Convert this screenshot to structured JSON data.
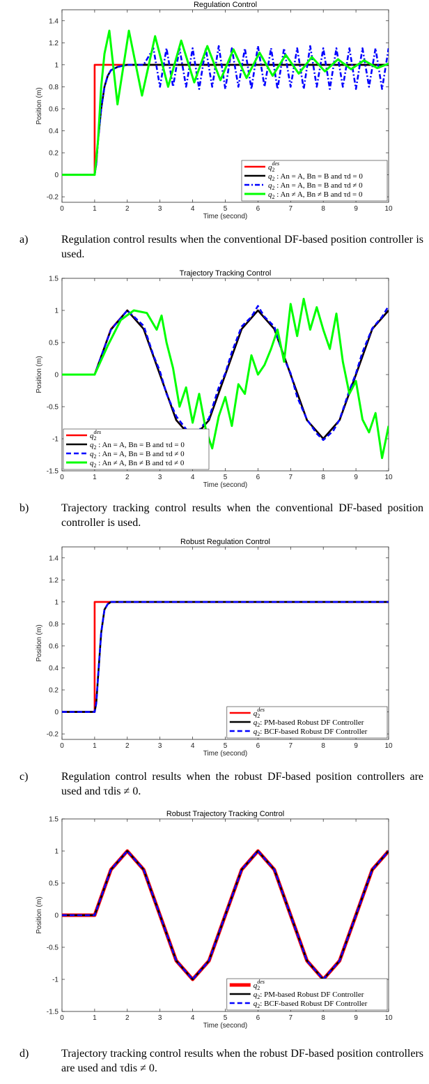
{
  "panels": [
    {
      "id": "a",
      "caption_letter": "a)",
      "caption": "Regulation control results when the conventional DF-based position controller is used.",
      "chart_data": {
        "type": "line",
        "title": "Regulation Control",
        "xlabel": "Time (second)",
        "ylabel": "Position (m)",
        "xlim": [
          0,
          10
        ],
        "ylim": [
          -0.25,
          1.5
        ],
        "xticks": [
          0,
          1,
          2,
          3,
          4,
          5,
          6,
          7,
          8,
          9,
          10
        ],
        "yticks": [
          -0.2,
          0,
          0.2,
          0.4,
          0.6,
          0.8,
          1,
          1.2,
          1.4
        ],
        "legend_placement": "bottom-right",
        "series": [
          {
            "name": "q2^des",
            "color": "#ff0000",
            "style": "solid",
            "x": [
              0,
              1,
              1,
              10
            ],
            "y": [
              0,
              0,
              1,
              1
            ]
          },
          {
            "name": "q2 : An = A, Bn = B and τd = 0",
            "color": "#000000",
            "style": "solid",
            "x": [
              0,
              1,
              1.05,
              1.1,
              1.2,
              1.3,
              1.4,
              1.5,
              1.7,
              2,
              2.5,
              3,
              10
            ],
            "y": [
              0,
              0,
              0.1,
              0.3,
              0.6,
              0.8,
              0.9,
              0.95,
              0.98,
              1,
              1,
              1,
              1
            ]
          },
          {
            "name": "q2 : An = A, Bn = B and τd ≠ 0",
            "color": "#0000ff",
            "style": "dashdot",
            "x": [
              0,
              1,
              1.05,
              1.1,
              1.2,
              1.3,
              1.4,
              1.5,
              1.7,
              2,
              2.5,
              2.8,
              3,
              3.2,
              3.4,
              3.6,
              3.8,
              4,
              4.2,
              4.4,
              4.6,
              4.8,
              5,
              5.2,
              5.4,
              5.6,
              5.8,
              6,
              6.2,
              6.4,
              6.6,
              6.8,
              7,
              7.2,
              7.4,
              7.6,
              7.8,
              8,
              8.2,
              8.4,
              8.6,
              8.8,
              9,
              9.2,
              9.4,
              9.6,
              9.8,
              10
            ],
            "y": [
              0,
              0,
              0.1,
              0.3,
              0.6,
              0.8,
              0.9,
              0.95,
              0.98,
              1,
              1,
              1.15,
              0.8,
              1.15,
              0.8,
              1.15,
              0.8,
              1.15,
              0.78,
              1.15,
              0.8,
              1.17,
              0.78,
              1.15,
              0.8,
              1.15,
              0.78,
              1.17,
              0.8,
              1.15,
              0.78,
              1.15,
              0.8,
              1.15,
              0.78,
              1.17,
              0.8,
              1.15,
              0.78,
              1.15,
              0.8,
              1.15,
              0.78,
              1.15,
              0.8,
              1.15,
              0.78,
              1.15
            ]
          },
          {
            "name": "q2 : An ≠ A, Bn ≠ B and τd = 0",
            "color": "#00ff00",
            "style": "solid",
            "x": [
              0,
              1,
              1.1,
              1.2,
              1.3,
              1.45,
              1.7,
              2.05,
              2.45,
              2.85,
              3.25,
              3.65,
              4.05,
              4.45,
              4.85,
              5.25,
              5.65,
              6.05,
              6.45,
              6.85,
              7.25,
              7.65,
              8.05,
              8.45,
              8.85,
              9.25,
              9.65,
              10
            ],
            "y": [
              0,
              0,
              0.3,
              0.8,
              1.1,
              1.31,
              0.64,
              1.31,
              0.72,
              1.26,
              0.8,
              1.22,
              0.84,
              1.17,
              0.86,
              1.14,
              0.88,
              1.11,
              0.9,
              1.09,
              0.92,
              1.07,
              0.94,
              1.05,
              0.96,
              1.04,
              0.97,
              1.01
            ]
          }
        ]
      }
    },
    {
      "id": "b",
      "caption_letter": "b)",
      "caption": "Trajectory tracking control results when the conventional DF-based position controller is used.",
      "chart_data": {
        "type": "line",
        "title": "Trajectory Tracking Control",
        "xlabel": "Time (second)",
        "ylabel": "Position (m)",
        "xlim": [
          0,
          10
        ],
        "ylim": [
          -1.5,
          1.5
        ],
        "xticks": [
          0,
          1,
          2,
          3,
          4,
          5,
          6,
          7,
          8,
          9,
          10
        ],
        "yticks": [
          -1.5,
          -1,
          -0.5,
          0,
          0.5,
          1,
          1.5
        ],
        "legend_placement": "bottom-left",
        "series": [
          {
            "name": "q2^des",
            "color": "#ff0000",
            "style": "solid",
            "x": [
              0,
              1,
              1.5,
              2,
              2.5,
              3,
              3.5,
              4,
              4.5,
              5,
              5.5,
              6,
              6.5,
              7,
              7.5,
              8,
              8.5,
              9,
              9.5,
              10
            ],
            "y": [
              0,
              0,
              0.71,
              1,
              0.71,
              0,
              -0.71,
              -1,
              -0.71,
              0,
              0.71,
              1,
              0.71,
              0,
              -0.71,
              -1,
              -0.71,
              0,
              0.71,
              1
            ]
          },
          {
            "name": "q2 : An = A, Bn = B and τd = 0",
            "color": "#000000",
            "style": "solid",
            "x": [
              0,
              1,
              1.5,
              2,
              2.5,
              3,
              3.5,
              4,
              4.5,
              5,
              5.5,
              6,
              6.5,
              7,
              7.5,
              8,
              8.5,
              9,
              9.5,
              10
            ],
            "y": [
              0,
              0,
              0.7,
              1,
              0.71,
              0,
              -0.71,
              -1,
              -0.71,
              0,
              0.71,
              1,
              0.71,
              0,
              -0.71,
              -1,
              -0.71,
              0,
              0.71,
              1
            ]
          },
          {
            "name": "q2 : An = A, Bn = B and τd ≠ 0",
            "color": "#0000ff",
            "style": "dash",
            "x": [
              0,
              1,
              1.5,
              2,
              2.5,
              2.8,
              3,
              3.2,
              3.5,
              3.8,
              4,
              4.3,
              4.5,
              4.8,
              5,
              5.2,
              5.5,
              5.8,
              6,
              6.2,
              6.5,
              6.8,
              7,
              7.2,
              7.5,
              7.8,
              8,
              8.3,
              8.5,
              8.8,
              9,
              9.2,
              9.5,
              9.8,
              10
            ],
            "y": [
              0,
              0,
              0.7,
              1,
              0.76,
              0.3,
              0.05,
              -0.3,
              -0.65,
              -0.85,
              -1,
              -0.8,
              -0.68,
              -0.2,
              0.02,
              0.35,
              0.75,
              0.9,
              1.07,
              0.9,
              0.75,
              0.25,
              0.02,
              -0.35,
              -0.7,
              -0.92,
              -1.02,
              -0.88,
              -0.7,
              -0.25,
              0.02,
              0.35,
              0.72,
              0.9,
              1.07
            ]
          },
          {
            "name": "q2 : An ≠ A, Bn ≠ B and τd ≠ 0",
            "color": "#00ff00",
            "style": "solid",
            "x": [
              0,
              1,
              1.4,
              1.8,
              2.2,
              2.6,
              2.9,
              3.05,
              3.2,
              3.4,
              3.6,
              3.8,
              4,
              4.2,
              4.4,
              4.6,
              4.8,
              5,
              5.2,
              5.4,
              5.6,
              5.8,
              6,
              6.2,
              6.4,
              6.6,
              6.8,
              7,
              7.2,
              7.4,
              7.6,
              7.8,
              8,
              8.2,
              8.4,
              8.6,
              8.8,
              9,
              9.2,
              9.4,
              9.6,
              9.8,
              10
            ],
            "y": [
              0,
              0,
              0.45,
              0.85,
              1,
              0.96,
              0.7,
              0.92,
              0.5,
              0.1,
              -0.5,
              -0.2,
              -0.75,
              -0.3,
              -0.85,
              -1.15,
              -0.65,
              -0.35,
              -0.8,
              -0.15,
              -0.3,
              0.3,
              0,
              0.15,
              0.4,
              0.7,
              0.2,
              1.1,
              0.6,
              1.18,
              0.7,
              1.05,
              0.7,
              0.4,
              0.95,
              0.2,
              -0.3,
              -0.1,
              -0.7,
              -0.9,
              -0.6,
              -1.3,
              -0.8
            ]
          }
        ]
      }
    },
    {
      "id": "c",
      "caption_letter": "c)",
      "caption": "Regulation control results when the robust DF-based position controllers are used and τdis ≠ 0.",
      "chart_data": {
        "type": "line",
        "title": "Robust Regulation Control",
        "xlabel": "Time (second)",
        "ylabel": "Position (m)",
        "xlim": [
          0,
          10
        ],
        "ylim": [
          -0.25,
          1.5
        ],
        "xticks": [
          0,
          1,
          2,
          3,
          4,
          5,
          6,
          7,
          8,
          9,
          10
        ],
        "yticks": [
          -0.2,
          0,
          0.2,
          0.4,
          0.6,
          0.8,
          1,
          1.2,
          1.4
        ],
        "legend_placement": "bottom-right",
        "series": [
          {
            "name": "q2^des",
            "color": "#ff0000",
            "style": "solid",
            "x": [
              0,
              1,
              1,
              10
            ],
            "y": [
              0,
              0,
              1,
              1
            ]
          },
          {
            "name": "q2: PM-based Robust DF Controller",
            "color": "#000000",
            "style": "solid",
            "x": [
              0,
              1,
              1.05,
              1.1,
              1.2,
              1.3,
              1.4,
              1.5,
              1.7,
              2,
              10
            ],
            "y": [
              0,
              0,
              0.08,
              0.3,
              0.72,
              0.93,
              0.98,
              1,
              1,
              1,
              1
            ]
          },
          {
            "name": "q2: BCF-based Robust DF Controller",
            "color": "#0000ff",
            "style": "dash",
            "x": [
              0,
              1,
              1.05,
              1.1,
              1.2,
              1.3,
              1.4,
              1.5,
              1.7,
              2,
              10
            ],
            "y": [
              0,
              0,
              0.08,
              0.3,
              0.72,
              0.93,
              0.98,
              1,
              1,
              1,
              1
            ]
          }
        ]
      }
    },
    {
      "id": "d",
      "caption_letter": "d)",
      "caption": "Trajectory tracking control results when the robust DF-based position controllers are used and τdis ≠ 0.",
      "chart_data": {
        "type": "line",
        "title": "Robust Trajectory Tracking Control",
        "xlabel": "Time (second)",
        "ylabel": "Position (m)",
        "xlim": [
          0,
          10
        ],
        "ylim": [
          -1.5,
          1.5
        ],
        "xticks": [
          0,
          1,
          2,
          3,
          4,
          5,
          6,
          7,
          8,
          9,
          10
        ],
        "yticks": [
          -1.5,
          -1,
          -0.5,
          0,
          0.5,
          1,
          1.5
        ],
        "legend_placement": "bottom-right",
        "series": [
          {
            "name": "q2^des",
            "color": "#ff0000",
            "style": "thick",
            "x": [
              0,
              1,
              1.5,
              2,
              2.5,
              3,
              3.5,
              4,
              4.5,
              5,
              5.5,
              6,
              6.5,
              7,
              7.5,
              8,
              8.5,
              9,
              9.5,
              10
            ],
            "y": [
              0,
              0,
              0.71,
              1,
              0.71,
              0,
              -0.71,
              -1,
              -0.71,
              0,
              0.71,
              1,
              0.71,
              0,
              -0.71,
              -1,
              -0.71,
              0,
              0.71,
              1
            ]
          },
          {
            "name": "q2: PM-based Robust DF Controller",
            "color": "#000000",
            "style": "solid",
            "x": [
              0,
              1,
              1.5,
              2,
              2.5,
              3,
              3.5,
              4,
              4.5,
              5,
              5.5,
              6,
              6.5,
              7,
              7.5,
              8,
              8.5,
              9,
              9.5,
              10
            ],
            "y": [
              0,
              0,
              0.71,
              1,
              0.71,
              0,
              -0.71,
              -1,
              -0.71,
              0,
              0.71,
              1,
              0.71,
              0,
              -0.71,
              -1,
              -0.71,
              0,
              0.71,
              1
            ]
          },
          {
            "name": "q2: BCF-based Robust DF Controller",
            "color": "#0000ff",
            "style": "dash",
            "x": [
              0,
              1,
              1.5,
              2,
              2.5,
              3,
              3.5,
              4,
              4.5,
              5,
              5.5,
              6,
              6.5,
              7,
              7.5,
              8,
              8.5,
              9,
              9.5,
              10
            ],
            "y": [
              0,
              0,
              0.71,
              1,
              0.71,
              0,
              -0.71,
              -1,
              -0.71,
              0,
              0.71,
              1,
              0.71,
              0,
              -0.71,
              -1,
              -0.71,
              0,
              0.71,
              1
            ]
          }
        ]
      }
    }
  ]
}
